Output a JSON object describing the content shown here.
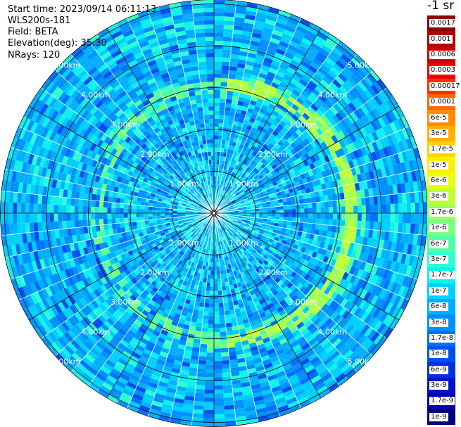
{
  "header": {
    "start_time": "Start time: 2023/09/14 06:11:13",
    "device": "WLS200s-181",
    "field": "Field: BETA",
    "elevation": "Elevation(deg): 35.30",
    "nrays": "NRays: 120"
  },
  "colorbar": {
    "unit_label": "-1 sr",
    "steps": [
      {
        "label": "0.0017",
        "color": "#8b0000"
      },
      {
        "label": "0.001",
        "color": "#b00000"
      },
      {
        "label": "0.0006",
        "color": "#d00000"
      },
      {
        "label": "0.0003",
        "color": "#ee0000"
      },
      {
        "label": "0.00017",
        "color": "#ff3000"
      },
      {
        "label": "0.0001",
        "color": "#ff6600"
      },
      {
        "label": "6e-5",
        "color": "#ff8c00"
      },
      {
        "label": "3e-5",
        "color": "#ffb000"
      },
      {
        "label": "1.7e-5",
        "color": "#ffd200"
      },
      {
        "label": "1e-5",
        "color": "#ffee00"
      },
      {
        "label": "6e-6",
        "color": "#e6ff10"
      },
      {
        "label": "3e-6",
        "color": "#c0ff38"
      },
      {
        "label": "1.7e-6",
        "color": "#9cff5c"
      },
      {
        "label": "1e-6",
        "color": "#78ff80"
      },
      {
        "label": "6e-7",
        "color": "#50ffa8"
      },
      {
        "label": "3e-7",
        "color": "#2cffd2"
      },
      {
        "label": "1.7e-7",
        "color": "#10f0ee"
      },
      {
        "label": "1e-7",
        "color": "#00d0ff"
      },
      {
        "label": "6e-8",
        "color": "#00b0ff"
      },
      {
        "label": "3e-8",
        "color": "#0090ff"
      },
      {
        "label": "1.7e-8",
        "color": "#0070ff"
      },
      {
        "label": "1e-8",
        "color": "#0050f0"
      },
      {
        "label": "6e-9",
        "color": "#0030e0"
      },
      {
        "label": "3e-9",
        "color": "#0010cc"
      },
      {
        "label": "1.7e-9",
        "color": "#0000a8"
      },
      {
        "label": "1e-9",
        "color": "#00007a"
      }
    ]
  },
  "chart_data": {
    "type": "heatmap",
    "projection": "polar (PPI scan)",
    "nrays": 120,
    "range_rings_km": [
      1,
      2,
      3,
      4,
      5
    ],
    "range_ring_labels": [
      "1.00km",
      "2.00km",
      "3.00km",
      "4.00km",
      "5.00km"
    ],
    "max_range_km": 5.1,
    "value_scale": "log",
    "value_range": [
      1e-09,
      0.0017
    ],
    "background_level": "~3e-8 to 1e-7 (blue / cyan)",
    "feature": "ring of elevated backscatter (~1e-6 to 3e-6) near 3.0 km range, strongest on the east side",
    "grid": true
  }
}
